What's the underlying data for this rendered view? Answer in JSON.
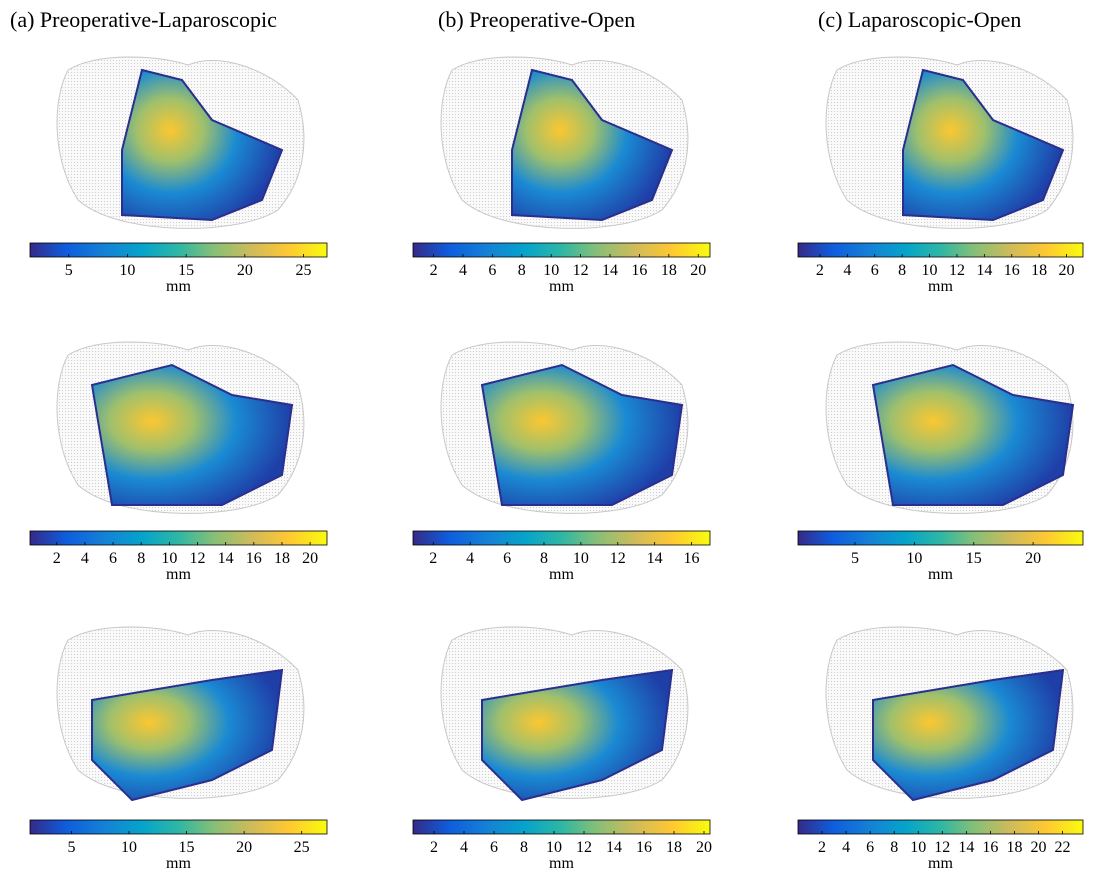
{
  "columns": [
    "(a) Preoperative-Laparoscopic",
    "(b) Preoperative-Open",
    "(c) Laparoscopic-Open"
  ],
  "panels": [
    {
      "colorbar": {
        "lim": [
          1.7,
          27
        ],
        "ticks": [
          5,
          10,
          15,
          20,
          25
        ],
        "label": "mm"
      }
    },
    {
      "colorbar": {
        "lim": [
          0.6,
          20.8
        ],
        "ticks": [
          2,
          4,
          6,
          8,
          10,
          12,
          14,
          16,
          18,
          20
        ],
        "label": "mm"
      }
    },
    {
      "colorbar": {
        "lim": [
          0.4,
          21.2
        ],
        "ticks": [
          2,
          4,
          6,
          8,
          10,
          12,
          14,
          16,
          18,
          20
        ],
        "label": "mm"
      }
    },
    {
      "colorbar": {
        "lim": [
          0.1,
          21.2
        ],
        "ticks": [
          2,
          4,
          6,
          8,
          10,
          12,
          14,
          16,
          18,
          20
        ],
        "label": "mm"
      }
    },
    {
      "colorbar": {
        "lim": [
          0.9,
          17
        ],
        "ticks": [
          2,
          4,
          6,
          8,
          10,
          12,
          14,
          16
        ],
        "label": "mm"
      }
    },
    {
      "colorbar": {
        "lim": [
          0.2,
          24.2
        ],
        "ticks": [
          5,
          10,
          15,
          20
        ],
        "label": "mm"
      }
    },
    {
      "colorbar": {
        "lim": [
          1.4,
          27.2
        ],
        "ticks": [
          5,
          10,
          15,
          20,
          25
        ],
        "label": "mm"
      }
    },
    {
      "colorbar": {
        "lim": [
          0.6,
          20.4
        ],
        "ticks": [
          2,
          4,
          6,
          8,
          10,
          12,
          14,
          16,
          18,
          20
        ],
        "label": "mm"
      }
    },
    {
      "colorbar": {
        "lim": [
          0,
          23.7
        ],
        "ticks": [
          2,
          4,
          6,
          8,
          10,
          12,
          14,
          16,
          18,
          20,
          22
        ],
        "label": "mm"
      }
    }
  ]
}
